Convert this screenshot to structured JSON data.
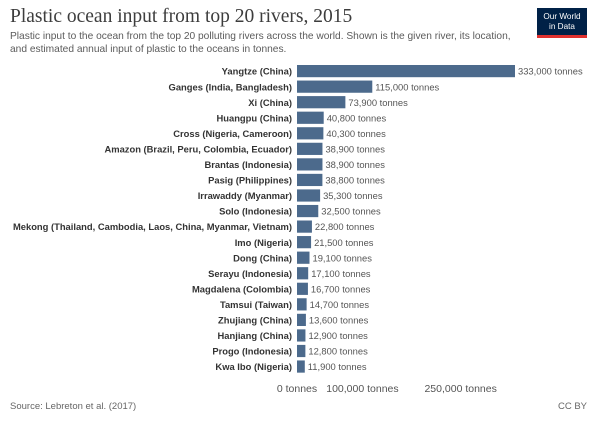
{
  "header": {
    "title": "Plastic ocean input from top 20 rivers, 2015",
    "subtitle": "Plastic input to the ocean from the top 20 polluting rivers across the world. Shown is the given river, its location, and estimated annual input of plastic to the oceans in tonnes."
  },
  "logo": {
    "line1": "Our World",
    "line2": "in Data"
  },
  "footer": {
    "source": "Source: Lebreton et al. (2017)",
    "license": "CC BY"
  },
  "colors": {
    "bar": "#4c6a8c",
    "label": "#333333",
    "value": "#555555"
  },
  "chart_data": {
    "type": "bar",
    "orientation": "horizontal",
    "title": "Plastic ocean input from top 20 rivers, 2015",
    "unit": "tonnes",
    "categories": [
      "Yangtze (China)",
      "Ganges (India, Bangladesh)",
      "Xi (China)",
      "Huangpu (China)",
      "Cross (Nigeria, Cameroon)",
      "Amazon (Brazil, Peru, Colombia, Ecuador)",
      "Brantas (Indonesia)",
      "Pasig (Philippines)",
      "Irrawaddy (Myanmar)",
      "Solo (Indonesia)",
      "Mekong (Thailand, Cambodia, Laos, China, Myanmar, Vietnam)",
      "Imo (Nigeria)",
      "Dong (China)",
      "Serayu (Indonesia)",
      "Magdalena (Colombia)",
      "Tamsui (Taiwan)",
      "Zhujiang (China)",
      "Hanjiang (China)",
      "Progo (Indonesia)",
      "Kwa Ibo (Nigeria)"
    ],
    "values": [
      333000,
      115000,
      73900,
      40800,
      40300,
      38900,
      38900,
      38800,
      35300,
      32500,
      22800,
      21500,
      19100,
      17100,
      16700,
      14700,
      13600,
      12900,
      12800,
      11900
    ],
    "value_labels": [
      "333,000 tonnes",
      "115,000 tonnes",
      "73,900 tonnes",
      "40,800 tonnes",
      "40,300 tonnes",
      "38,900 tonnes",
      "38,900 tonnes",
      "38,800 tonnes",
      "35,300 tonnes",
      "32,500 tonnes",
      "22,800 tonnes",
      "21,500 tonnes",
      "19,100 tonnes",
      "17,100 tonnes",
      "16,700 tonnes",
      "14,700 tonnes",
      "13,600 tonnes",
      "12,900 tonnes",
      "12,800 tonnes",
      "11,900 tonnes"
    ],
    "xticks": [
      {
        "value": 0,
        "label": "0 tonnes"
      },
      {
        "value": 100000,
        "label": "100,000 tonnes"
      },
      {
        "value": 250000,
        "label": "250,000 tonnes"
      }
    ],
    "xlim": [
      0,
      333000
    ],
    "grid": false,
    "legend": false
  }
}
